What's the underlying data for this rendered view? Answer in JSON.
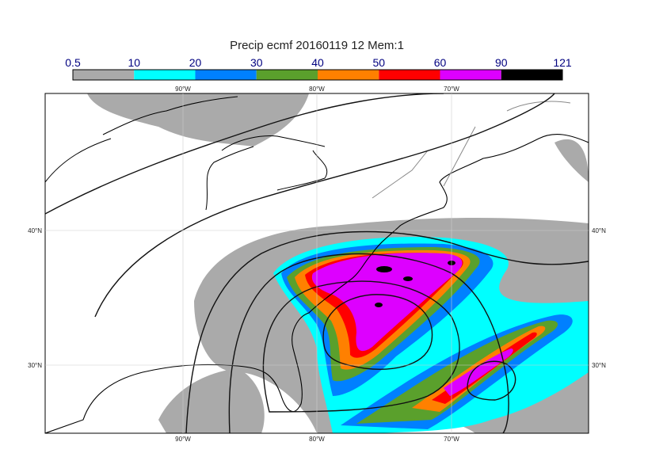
{
  "title": "Precip ecmf 20160119 12 Mem:1",
  "colorbar": {
    "levels": [
      0.5,
      10,
      20,
      30,
      40,
      50,
      60,
      90,
      121
    ],
    "colors": [
      "#aaaaaa",
      "#00ffff",
      "#0080ff",
      "#5aa02c",
      "#ff8000",
      "#ff0000",
      "#dd00ff",
      "#000000"
    ]
  },
  "map": {
    "lon_labels": [
      "90°W",
      "80°W",
      "70°W"
    ],
    "lat_labels": [
      "40°N",
      "30°N"
    ]
  }
}
